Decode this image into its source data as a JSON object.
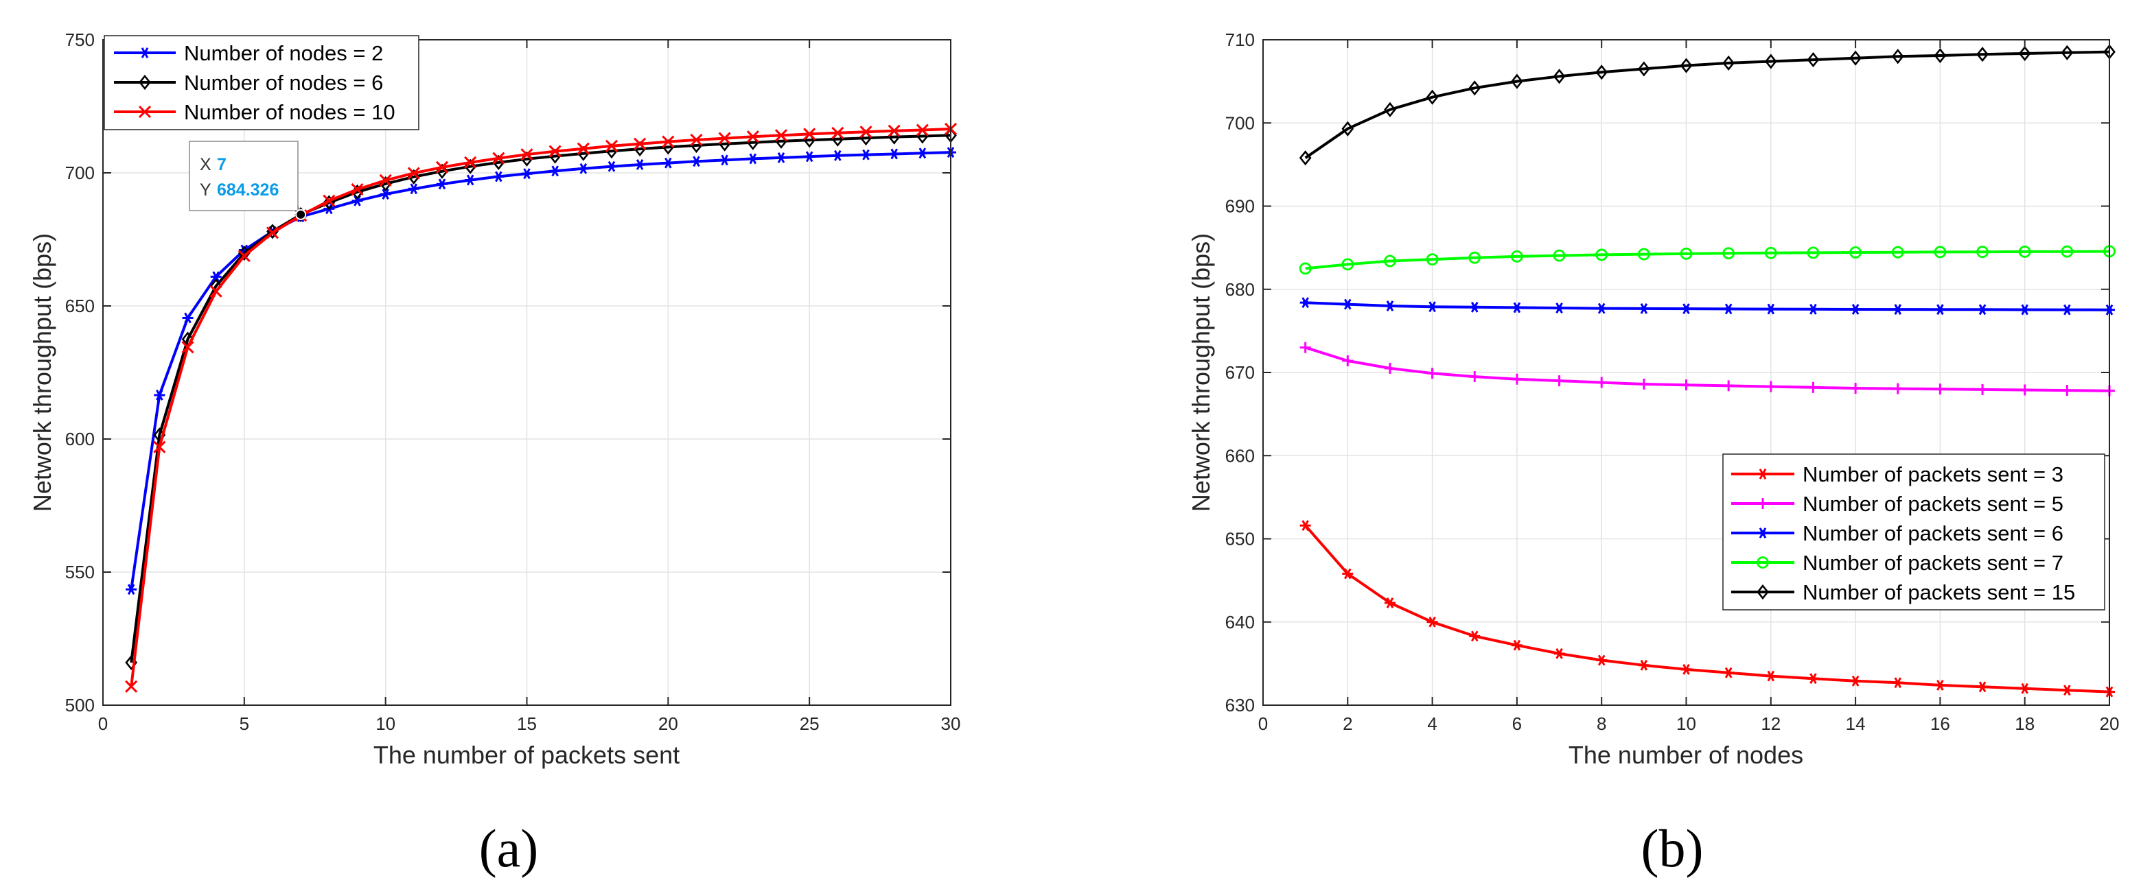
{
  "chart_data": [
    {
      "id": "a",
      "type": "line",
      "caption": "(a)",
      "xlabel": "The number of packets sent",
      "ylabel": "Network throughput (bps)",
      "xlim": [
        0,
        30
      ],
      "ylim": [
        500,
        750
      ],
      "xticks": [
        0,
        5,
        10,
        15,
        20,
        25,
        30
      ],
      "yticks": [
        500,
        550,
        600,
        650,
        700,
        750
      ],
      "grid": true,
      "legend_position": "top-left",
      "x": [
        1,
        2,
        3,
        4,
        5,
        6,
        7,
        8,
        9,
        10,
        11,
        12,
        13,
        14,
        15,
        16,
        17,
        18,
        19,
        20,
        21,
        22,
        23,
        24,
        25,
        26,
        27,
        28,
        29,
        30
      ],
      "series": [
        {
          "name": "Number of nodes = 2",
          "color": "#0000ff",
          "marker": "asterisk",
          "values": [
            543.5,
            616.5,
            645.5,
            661,
            671,
            678,
            683.5,
            686.5,
            689.5,
            692,
            694,
            695.8,
            697.3,
            698.6,
            699.7,
            700.7,
            701.6,
            702.4,
            703.1,
            703.7,
            704.3,
            704.8,
            705.3,
            705.7,
            706.1,
            706.5,
            706.8,
            707.1,
            707.4,
            707.7
          ]
        },
        {
          "name": "Number of nodes = 6",
          "color": "#000000",
          "marker": "diamond",
          "values": [
            516,
            601.5,
            637.5,
            657.5,
            669.8,
            678,
            684.3,
            688.8,
            692.8,
            695.9,
            698.5,
            700.6,
            702.4,
            703.9,
            705.2,
            706.3,
            707.3,
            708.2,
            709,
            709.7,
            710.3,
            710.9,
            711.4,
            711.9,
            712.3,
            712.7,
            713.1,
            713.5,
            713.8,
            714.1
          ]
        },
        {
          "name": "Number of nodes = 10",
          "color": "#ff0000",
          "marker": "x",
          "values": [
            507,
            597,
            634.5,
            655.5,
            668.8,
            677.5,
            684,
            689.5,
            693.8,
            697.2,
            699.9,
            702.1,
            703.9,
            705.5,
            706.9,
            708.1,
            709.1,
            710.1,
            710.9,
            711.7,
            712.4,
            713,
            713.6,
            714.1,
            714.6,
            715,
            715.4,
            715.8,
            716.1,
            716.5
          ]
        }
      ],
      "datatip": {
        "x_label": "X",
        "x_value": "7",
        "y_label": "Y",
        "y_value": "684.326",
        "x": 7,
        "y": 684.326
      }
    },
    {
      "id": "b",
      "type": "line",
      "caption": "(b)",
      "xlabel": "The number of nodes",
      "ylabel": "Network throughput (bps)",
      "xlim": [
        0,
        20
      ],
      "ylim": [
        630,
        710
      ],
      "xticks": [
        0,
        2,
        4,
        6,
        8,
        10,
        12,
        14,
        16,
        18,
        20
      ],
      "yticks": [
        630,
        640,
        650,
        660,
        670,
        680,
        690,
        700,
        710
      ],
      "grid": true,
      "legend_position": "bottom-right",
      "x": [
        1,
        2,
        3,
        4,
        5,
        6,
        7,
        8,
        9,
        10,
        11,
        12,
        13,
        14,
        15,
        16,
        17,
        18,
        19,
        20
      ],
      "series": [
        {
          "name": "Number of packets sent = 3",
          "color": "#ff0000",
          "marker": "asterisk",
          "values": [
            651.6,
            645.8,
            642.3,
            640,
            638.3,
            637.2,
            636.2,
            635.4,
            634.8,
            634.3,
            633.9,
            633.5,
            633.2,
            632.9,
            632.7,
            632.4,
            632.2,
            632,
            631.8,
            631.6
          ]
        },
        {
          "name": "Number of packets sent = 5",
          "color": "#ff00ff",
          "marker": "plus",
          "values": [
            673,
            671.4,
            670.5,
            669.9,
            669.5,
            669.2,
            669,
            668.8,
            668.6,
            668.5,
            668.4,
            668.3,
            668.2,
            668.1,
            668.05,
            668,
            667.95,
            667.9,
            667.85,
            667.8
          ]
        },
        {
          "name": "Number of packets sent = 6",
          "color": "#0000ff",
          "marker": "star",
          "values": [
            678.4,
            678.2,
            678,
            677.9,
            677.85,
            677.8,
            677.75,
            677.7,
            677.68,
            677.66,
            677.64,
            677.62,
            677.6,
            677.59,
            677.58,
            677.57,
            677.56,
            677.55,
            677.54,
            677.53
          ]
        },
        {
          "name": "Number of packets sent = 7",
          "color": "#00ff00",
          "marker": "circle",
          "values": [
            682.5,
            683,
            683.4,
            683.6,
            683.8,
            683.95,
            684.05,
            684.15,
            684.22,
            684.28,
            684.33,
            684.37,
            684.4,
            684.43,
            684.46,
            684.48,
            684.5,
            684.52,
            684.54,
            684.56
          ]
        },
        {
          "name": "Number of packets sent = 15",
          "color": "#000000",
          "marker": "diamond",
          "values": [
            695.8,
            699.3,
            701.6,
            703.1,
            704.2,
            705,
            705.6,
            706.1,
            706.5,
            706.9,
            707.2,
            707.4,
            707.6,
            707.8,
            708,
            708.1,
            708.25,
            708.35,
            708.45,
            708.55
          ]
        }
      ]
    }
  ]
}
